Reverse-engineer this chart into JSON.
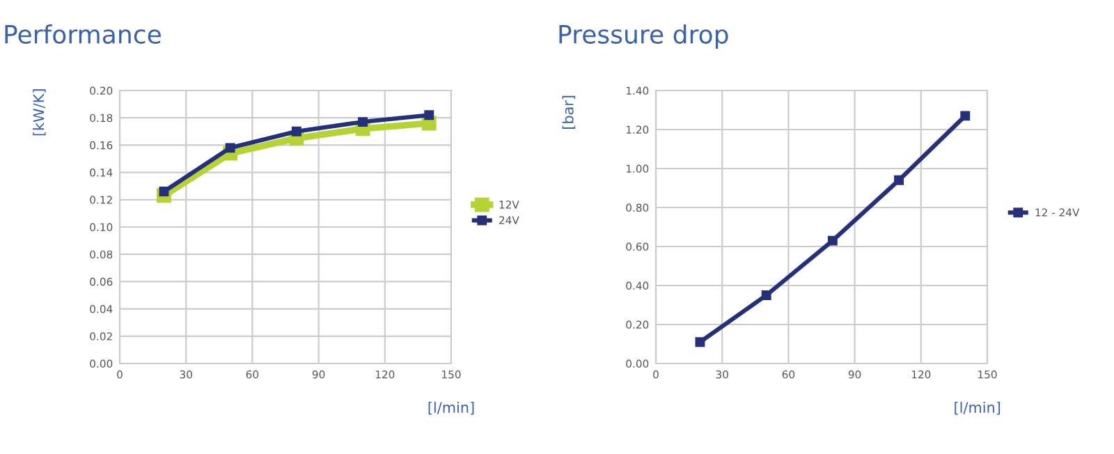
{
  "chart_data": [
    {
      "type": "line",
      "title": "Performance",
      "xlabel": "[l/min]",
      "ylabel": "[kW/K]",
      "x": [
        20,
        50,
        80,
        110,
        140
      ],
      "series": [
        {
          "name": "12V",
          "color": "#b5d334",
          "values": [
            0.123,
            0.154,
            0.165,
            0.172,
            0.176
          ]
        },
        {
          "name": "24V",
          "color": "#25307a",
          "values": [
            0.126,
            0.158,
            0.17,
            0.177,
            0.182
          ]
        }
      ],
      "xlim": [
        0,
        150
      ],
      "xticks": [
        0,
        30,
        60,
        90,
        120,
        150
      ],
      "ylim": [
        0,
        0.2
      ],
      "yticks": [
        {
          "value": 0,
          "label": "0.00"
        },
        {
          "value": 0.02,
          "label": "0.02"
        },
        {
          "value": 0.04,
          "label": "0.04"
        },
        {
          "value": 0.06,
          "label": "0.06"
        },
        {
          "value": 0.08,
          "label": "0.08"
        },
        {
          "value": 0.1,
          "label": "0.10"
        },
        {
          "value": 0.12,
          "label": "0.12"
        },
        {
          "value": 0.14,
          "label": "0.14"
        },
        {
          "value": 0.16,
          "label": "0.16"
        },
        {
          "value": 0.18,
          "label": "0.18"
        },
        {
          "value": 0.2,
          "label": "0.20"
        }
      ],
      "grid": true,
      "legend": "right",
      "marker": "square",
      "line_style": "solid"
    },
    {
      "type": "line",
      "title": "Pressure drop",
      "xlabel": "[l/min]",
      "ylabel": "[bar]",
      "x": [
        20,
        50,
        80,
        110,
        140
      ],
      "series": [
        {
          "name": "12 - 24V",
          "color": "#25307a",
          "values": [
            0.11,
            0.35,
            0.63,
            0.94,
            1.27
          ]
        }
      ],
      "xlim": [
        0,
        150
      ],
      "xticks": [
        0,
        30,
        60,
        90,
        120,
        150
      ],
      "ylim": [
        0,
        1.4
      ],
      "yticks": [
        {
          "value": 0,
          "label": "0.00"
        },
        {
          "value": 0.2,
          "label": "0.20"
        },
        {
          "value": 0.4,
          "label": "0.40"
        },
        {
          "value": 0.6,
          "label": "0.60"
        },
        {
          "value": 0.8,
          "label": "0.80"
        },
        {
          "value": 1.0,
          "label": "1.00"
        },
        {
          "value": 1.2,
          "label": "1.20"
        },
        {
          "value": 1.4,
          "label": "1.40"
        }
      ],
      "grid": true,
      "legend": "right",
      "marker": "square",
      "line_style": "solid"
    }
  ]
}
